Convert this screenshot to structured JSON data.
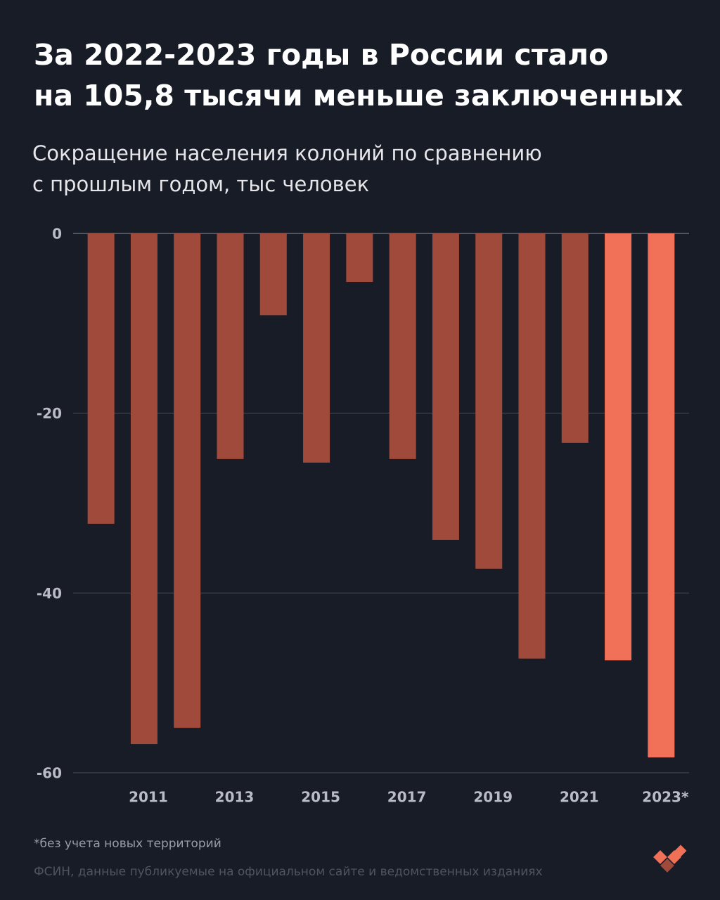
{
  "chart_data": {
    "type": "bar",
    "title": [
      "За 2022-2023 годы в России стало",
      "на 105,8 тысячи меньше заключенных"
    ],
    "subtitle": [
      "Сокращение населения колоний по сравнению",
      "с прошлым годом, тыс человек"
    ],
    "categories": [
      null,
      "2011",
      null,
      "2013",
      null,
      "2015",
      null,
      "2017",
      null,
      "2019",
      null,
      "2021",
      null,
      "2023*"
    ],
    "values": [
      -32.3,
      -56.8,
      -55.0,
      -25.1,
      -9.1,
      -25.5,
      -5.4,
      -25.1,
      -34.1,
      -37.3,
      -47.3,
      -23.3,
      -47.5,
      -58.3
    ],
    "colors": [
      "#a04a3c",
      "#a04a3c",
      "#a04a3c",
      "#a04a3c",
      "#a04a3c",
      "#a04a3c",
      "#a04a3c",
      "#a04a3c",
      "#a04a3c",
      "#a04a3c",
      "#a04a3c",
      "#a04a3c",
      "#f07058",
      "#f07058"
    ],
    "ylim": [
      -60,
      0
    ],
    "yticks": [
      0,
      -20,
      -40,
      -60
    ],
    "grid": true,
    "footnote": "*без учета новых территорий",
    "source": "ФСИН, данные публикуемые на официальном сайте и ведомственных изданиях"
  }
}
